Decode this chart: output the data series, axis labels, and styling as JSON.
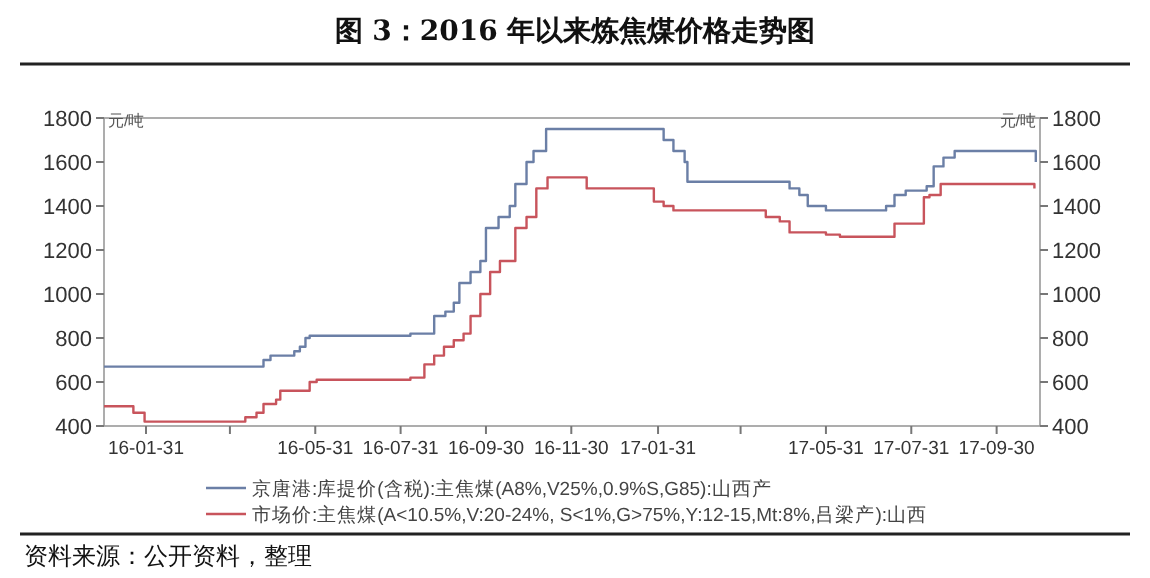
{
  "chart_data": {
    "type": "step",
    "title": "图 3：2016 年以来炼焦煤价格走势图",
    "ylabel": "元/吨",
    "y2label": "元/吨",
    "xlim": [
      "2016-01-01",
      "2017-10-31"
    ],
    "xticks": [
      {
        "value": "2016-01-31",
        "label": "16-01-31"
      },
      {
        "value": "2016-03-31",
        "label": null
      },
      {
        "value": "2016-05-31",
        "label": "16-05-31"
      },
      {
        "value": "2016-07-31",
        "label": "16-07-31"
      },
      {
        "value": "2016-09-30",
        "label": "16-09-30"
      },
      {
        "value": "2016-11-30",
        "label": "16-11-30"
      },
      {
        "value": "2017-01-31",
        "label": "17-01-31"
      },
      {
        "value": "2017-03-31",
        "label": null
      },
      {
        "value": "2017-05-31",
        "label": "17-05-31"
      },
      {
        "value": "2017-07-31",
        "label": "17-07-31"
      },
      {
        "value": "2017-09-30",
        "label": "17-09-30"
      }
    ],
    "ylim": [
      400,
      1800
    ],
    "yticks": [
      400,
      600,
      800,
      1000,
      1200,
      1400,
      1600,
      1800
    ],
    "y2lim": [
      400,
      1800
    ],
    "y2ticks": [
      400,
      600,
      800,
      1000,
      1200,
      1400,
      1600,
      1800
    ],
    "legend": "bottom",
    "grid": false,
    "series": [
      {
        "name": "京唐港:库提价(含税):主焦煤(A8%,V25%,0.9%S,G85):山西产",
        "color": "#6b7fa6",
        "x": [
          "2016-01-01",
          "2016-04-17",
          "2016-04-24",
          "2016-04-29",
          "2016-05-16",
          "2016-05-20",
          "2016-05-24",
          "2016-05-27",
          "2016-08-02",
          "2016-08-07",
          "2016-08-18",
          "2016-08-24",
          "2016-09-01",
          "2016-09-07",
          "2016-09-11",
          "2016-09-19",
          "2016-09-26",
          "2016-09-30",
          "2016-10-09",
          "2016-10-17",
          "2016-10-21",
          "2016-10-29",
          "2016-11-03",
          "2016-11-12",
          "2017-02-01",
          "2017-02-04",
          "2017-02-11",
          "2017-02-19",
          "2017-02-21",
          "2017-04-28",
          "2017-05-05",
          "2017-05-12",
          "2017-05-18",
          "2017-05-31",
          "2017-07-09",
          "2017-07-13",
          "2017-07-19",
          "2017-07-27",
          "2017-08-11",
          "2017-08-16",
          "2017-08-23",
          "2017-08-31",
          "2017-10-24",
          "2017-10-28"
        ],
        "values": [
          670,
          670,
          700,
          720,
          740,
          760,
          800,
          810,
          810,
          820,
          820,
          900,
          920,
          960,
          1050,
          1100,
          1150,
          1300,
          1350,
          1400,
          1500,
          1600,
          1650,
          1750,
          1750,
          1700,
          1650,
          1600,
          1510,
          1510,
          1480,
          1450,
          1400,
          1380,
          1380,
          1400,
          1450,
          1470,
          1490,
          1580,
          1620,
          1650,
          1650,
          1600
        ]
      },
      {
        "name": "市场价:主焦煤(A<10.5%,V:20-24%, S<1%,G>75%,Y:12-15,Mt:8%,吕梁产):山西",
        "color": "#c8545c",
        "x": [
          "2016-01-01",
          "2016-01-20",
          "2016-01-22",
          "2016-01-30",
          "2016-04-07",
          "2016-04-11",
          "2016-04-19",
          "2016-04-24",
          "2016-05-03",
          "2016-05-06",
          "2016-05-24",
          "2016-05-27",
          "2016-06-01",
          "2016-08-04",
          "2016-08-07",
          "2016-08-17",
          "2016-08-24",
          "2016-08-31",
          "2016-09-07",
          "2016-09-14",
          "2016-09-19",
          "2016-09-26",
          "2016-10-03",
          "2016-10-10",
          "2016-10-21",
          "2016-10-29",
          "2016-11-05",
          "2016-11-13",
          "2016-12-06",
          "2016-12-11",
          "2017-01-25",
          "2017-01-28",
          "2017-02-04",
          "2017-02-11",
          "2017-04-14",
          "2017-04-18",
          "2017-04-28",
          "2017-05-05",
          "2017-05-31",
          "2017-06-10",
          "2017-07-16",
          "2017-07-19",
          "2017-08-03",
          "2017-08-09",
          "2017-08-13",
          "2017-08-21",
          "2017-10-21",
          "2017-10-27"
        ],
        "values": [
          490,
          490,
          460,
          420,
          420,
          440,
          460,
          500,
          520,
          560,
          560,
          600,
          610,
          610,
          620,
          680,
          720,
          760,
          790,
          820,
          900,
          1000,
          1100,
          1150,
          1300,
          1350,
          1480,
          1530,
          1530,
          1480,
          1480,
          1420,
          1400,
          1380,
          1380,
          1350,
          1330,
          1280,
          1270,
          1260,
          1260,
          1320,
          1320,
          1440,
          1450,
          1500,
          1500,
          1480
        ]
      }
    ],
    "annotations": [
      "资料来源：公开资料，整理"
    ]
  }
}
